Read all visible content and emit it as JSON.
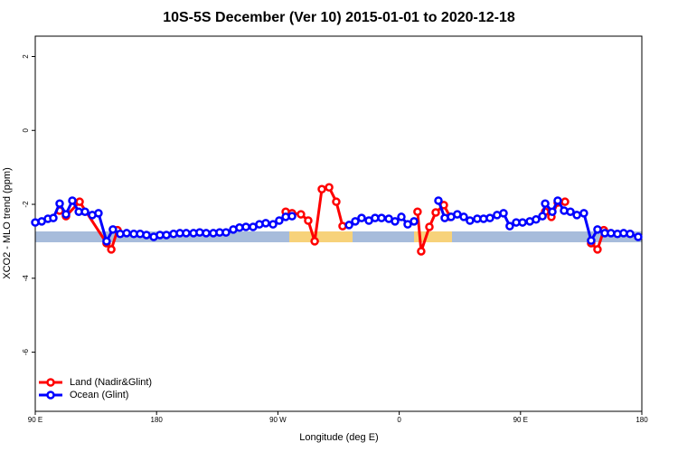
{
  "chart_data": {
    "type": "line",
    "title": "10S-5S December (Ver 10)   2015-01-01 to 2020-12-18",
    "x_label": "Longitude (deg E)",
    "y_label": "XCO2 - MLO trend (ppm)",
    "xlim": [
      90,
      540
    ],
    "xticks": [
      {
        "value": 90,
        "label": "90 E"
      },
      {
        "value": 180,
        "label": "180"
      },
      {
        "value": 270,
        "label": "90 W"
      },
      {
        "value": 360,
        "label": "0"
      },
      {
        "value": 450,
        "label": "90 E"
      },
      {
        "value": 540,
        "label": "180"
      }
    ],
    "ylim": [
      -7.6,
      2.55
    ],
    "yticks": [
      -6,
      -4,
      -2,
      0,
      2
    ],
    "legend": "bottom-left",
    "series": [
      {
        "name": "Land (Nadir&Glint)",
        "color": "#ff0000",
        "x": [
          108.1,
          112.8,
          122.9,
          142.9,
          146.4,
          151,
          null,
          275.8,
          280.5,
          287.1,
          292.5,
          297.3,
          302.6,
          308,
          313.3,
          318,
          null,
          373.6,
          376.3,
          382.4,
          387.1,
          393.1,
          397.8,
          null,
          468.3,
          472.9,
          477.6,
          483,
          null,
          502.4,
          507.1,
          511.8
        ],
        "values": [
          -2.17,
          -2.32,
          -1.93,
          -3.05,
          -3.22,
          -2.7,
          null,
          -2.2,
          -2.24,
          -2.27,
          -2.44,
          -3.0,
          -1.59,
          -1.54,
          -1.93,
          -2.59,
          null,
          -2.2,
          -3.27,
          -2.61,
          -2.22,
          -2.02,
          -2.34,
          null,
          -2.2,
          -2.34,
          -1.95,
          -1.93,
          null,
          -3.05,
          -3.22,
          -2.7
        ]
      },
      {
        "name": "Ocean (Glint)",
        "color": "#0000ff",
        "x": [
          90,
          94.8,
          99.4,
          103.4,
          108.1,
          112.8,
          117.5,
          122.3,
          126.9,
          132.3,
          136.9,
          142.9,
          147.6,
          153,
          157.8,
          163.1,
          167.8,
          172.5,
          177.9,
          182.5,
          187.3,
          192.6,
          197.3,
          202,
          207.4,
          212,
          216.8,
          222.1,
          226.8,
          231.5,
          236.9,
          241.5,
          246.3,
          251.6,
          256.3,
          261,
          266.4,
          271,
          275.8,
          280.5,
          null,
          322.8,
          327.4,
          332.1,
          337.5,
          342.1,
          346.9,
          352.3,
          356.9,
          361.6,
          366.3,
          371,
          null,
          389.1,
          393.8,
          398.5,
          403.1,
          407.9,
          412.5,
          417.9,
          422.6,
          427.3,
          432.6,
          437.4,
          442,
          446.8,
          451.5,
          456.9,
          461.5,
          466.3,
          468.3,
          473.6,
          477.6,
          482.3,
          487,
          491.8,
          497,
          502.4,
          507.1,
          512.5,
          517.1,
          521.9,
          526.5,
          531.3,
          537.3
        ],
        "values": [
          -2.49,
          -2.46,
          -2.39,
          -2.37,
          -1.98,
          -2.27,
          -1.9,
          -2.2,
          -2.2,
          -2.29,
          -2.24,
          -3.0,
          -2.68,
          -2.8,
          -2.78,
          -2.8,
          -2.8,
          -2.83,
          -2.88,
          -2.83,
          -2.83,
          -2.8,
          -2.78,
          -2.78,
          -2.78,
          -2.76,
          -2.78,
          -2.78,
          -2.76,
          -2.76,
          -2.68,
          -2.63,
          -2.61,
          -2.61,
          -2.54,
          -2.51,
          -2.54,
          -2.44,
          -2.34,
          -2.32,
          null,
          -2.56,
          -2.46,
          -2.37,
          -2.44,
          -2.37,
          -2.37,
          -2.39,
          -2.46,
          -2.34,
          -2.54,
          -2.46,
          null,
          -1.9,
          -2.37,
          -2.34,
          -2.27,
          -2.34,
          -2.44,
          -2.39,
          -2.39,
          -2.37,
          -2.29,
          -2.24,
          -2.59,
          -2.49,
          -2.49,
          -2.46,
          -2.41,
          -2.32,
          -1.98,
          -2.2,
          -1.9,
          -2.17,
          -2.2,
          -2.29,
          -2.24,
          -2.98,
          -2.68,
          -2.78,
          -2.78,
          -2.8,
          -2.78,
          -2.8,
          -2.88
        ]
      }
    ]
  }
}
